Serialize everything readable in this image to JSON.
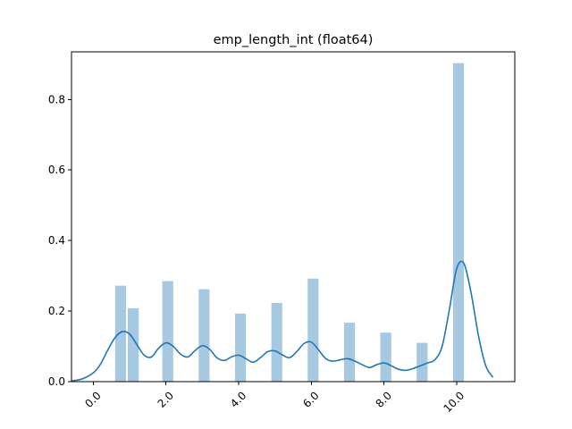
{
  "chart_data": {
    "type": "bar",
    "title": "emp_length_int (float64)",
    "xlabel": "",
    "ylabel": "",
    "xlim": [
      -0.6,
      11.6
    ],
    "ylim": [
      0,
      0.935
    ],
    "x_ticks": [
      0,
      2,
      4,
      6,
      8,
      10
    ],
    "x_tick_labels": [
      "0.0",
      "2.0",
      "4.0",
      "6.0",
      "8.0",
      "10.0"
    ],
    "y_ticks": [
      0,
      0.2,
      0.4,
      0.6,
      0.8
    ],
    "y_tick_labels": [
      "0.0",
      "0.2",
      "0.4",
      "0.6",
      "0.8"
    ],
    "bar_width": 0.3,
    "histogram": {
      "name": "histogram",
      "color": "#a6c8e0",
      "x": [
        0.6,
        0.95,
        1.9,
        2.9,
        3.9,
        4.9,
        5.9,
        6.9,
        7.9,
        8.9,
        9.9
      ],
      "values": [
        0.272,
        0.208,
        0.285,
        0.262,
        0.193,
        0.223,
        0.292,
        0.167,
        0.139,
        0.11,
        0.903
      ]
    },
    "kde": {
      "name": "density",
      "color": "#1f77b4",
      "x": [
        -0.6,
        -0.3,
        0.0,
        0.2,
        0.4,
        0.6,
        0.8,
        1.0,
        1.2,
        1.4,
        1.6,
        1.8,
        2.0,
        2.2,
        2.4,
        2.6,
        2.8,
        3.0,
        3.2,
        3.4,
        3.6,
        3.8,
        4.0,
        4.2,
        4.4,
        4.6,
        4.8,
        5.0,
        5.2,
        5.4,
        5.6,
        5.8,
        6.0,
        6.2,
        6.4,
        6.6,
        6.8,
        7.0,
        7.2,
        7.4,
        7.6,
        7.8,
        8.0,
        8.2,
        8.4,
        8.6,
        8.8,
        9.0,
        9.2,
        9.4,
        9.6,
        9.8,
        10.0,
        10.2,
        10.4,
        10.6,
        10.8,
        11.0
      ],
      "values": [
        0.002,
        0.008,
        0.025,
        0.05,
        0.09,
        0.125,
        0.142,
        0.135,
        0.105,
        0.075,
        0.07,
        0.095,
        0.11,
        0.1,
        0.078,
        0.07,
        0.088,
        0.102,
        0.092,
        0.068,
        0.06,
        0.07,
        0.075,
        0.065,
        0.055,
        0.068,
        0.085,
        0.087,
        0.076,
        0.068,
        0.085,
        0.108,
        0.112,
        0.09,
        0.065,
        0.058,
        0.062,
        0.065,
        0.058,
        0.048,
        0.04,
        0.048,
        0.053,
        0.045,
        0.035,
        0.032,
        0.037,
        0.045,
        0.053,
        0.062,
        0.1,
        0.205,
        0.32,
        0.335,
        0.25,
        0.13,
        0.045,
        0.012
      ]
    }
  }
}
